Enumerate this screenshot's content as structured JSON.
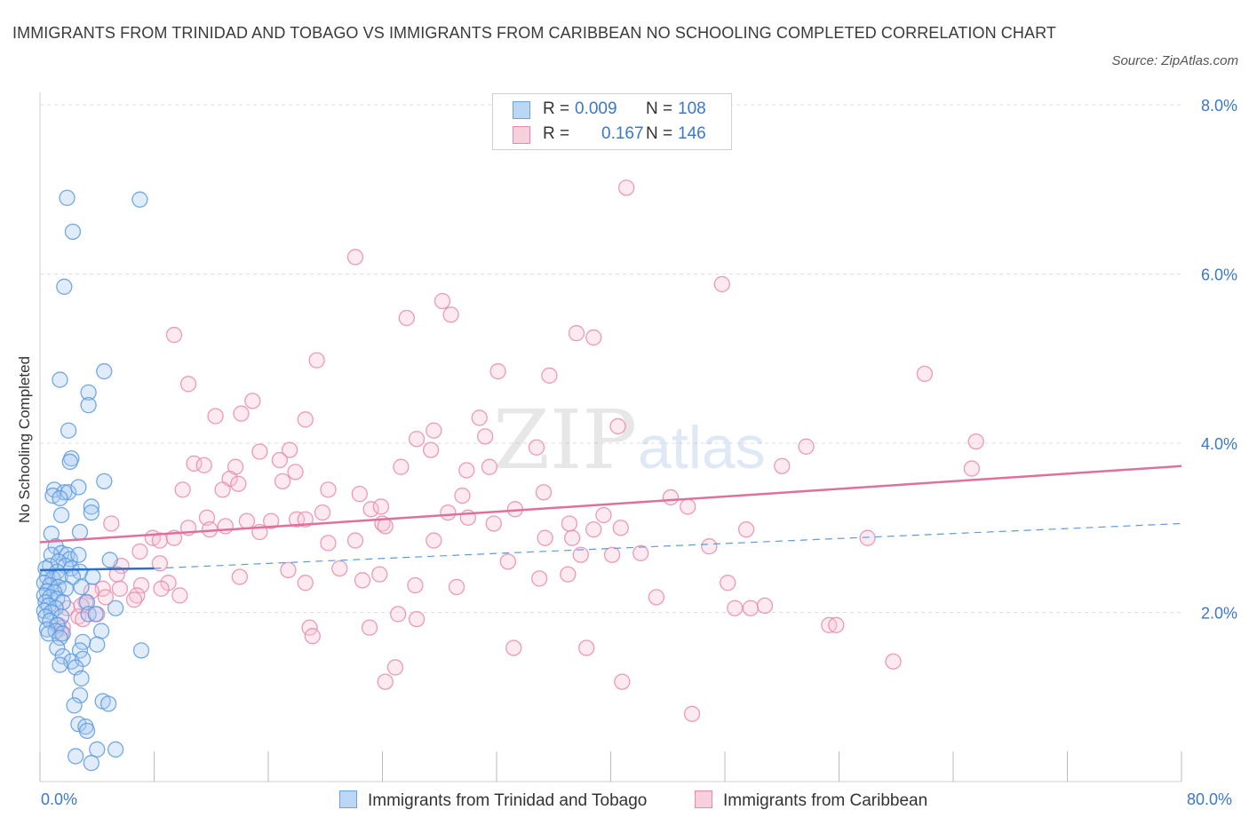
{
  "header": {
    "title": "IMMIGRANTS FROM TRINIDAD AND TOBAGO VS IMMIGRANTS FROM CARIBBEAN NO SCHOOLING COMPLETED CORRELATION CHART",
    "source": "Source: ZipAtlas.com"
  },
  "colors": {
    "blue": "#5b9be0",
    "blue_fill": "#a9c9f0",
    "blue_line": "#2a6fc9",
    "pink": "#e98aab",
    "pink_fill": "#f6c2d3",
    "pink_line": "#e0709a",
    "tick_text": "#3a78c9"
  },
  "legend": {
    "rows": [
      {
        "label": "R =",
        "r": "0.009",
        "n_label": "N =",
        "n": "108",
        "color": "blue"
      },
      {
        "label": "R =",
        "r": "0.167",
        "n_label": "N =",
        "n": "146",
        "color": "pink"
      }
    ]
  },
  "bottom_legend": {
    "series1": "Immigrants from Trinidad and Tobago",
    "series2": "Immigrants from Caribbean"
  },
  "watermark": {
    "zip": "ZIP",
    "atlas": "atlas"
  },
  "chart_data": {
    "type": "scatter",
    "title": "IMMIGRANTS FROM TRINIDAD AND TOBAGO VS IMMIGRANTS FROM CARIBBEAN NO SCHOOLING COMPLETED CORRELATION CHART",
    "xlabel": "",
    "ylabel": "No Schooling Completed",
    "xlim": [
      0,
      80
    ],
    "ylim": [
      0,
      8
    ],
    "x_tick_labels": [
      "0.0%",
      "80.0%"
    ],
    "y_ticks": [
      {
        "value": 2,
        "label": "2.0%"
      },
      {
        "value": 4,
        "label": "4.0%"
      },
      {
        "value": 6,
        "label": "6.0%"
      },
      {
        "value": 8,
        "label": "8.0%"
      }
    ],
    "grid": true,
    "legend_position": "top-center",
    "series": [
      {
        "name": "Immigrants from Trinidad and Tobago",
        "color": "blue",
        "r": 0.009,
        "n": 108,
        "trend_solid": [
          [
            0,
            2.5
          ],
          [
            8,
            2.52
          ]
        ],
        "trend_dashed": [
          [
            8,
            2.52
          ],
          [
            80,
            3.05
          ]
        ],
        "points": [
          [
            1.9,
            6.9
          ],
          [
            7.0,
            6.88
          ],
          [
            2.3,
            6.5
          ],
          [
            1.7,
            5.85
          ],
          [
            4.5,
            4.85
          ],
          [
            1.4,
            4.75
          ],
          [
            3.4,
            4.6
          ],
          [
            3.4,
            4.45
          ],
          [
            2.0,
            4.15
          ],
          [
            2.2,
            3.82
          ],
          [
            2.1,
            3.78
          ],
          [
            4.5,
            3.55
          ],
          [
            1.0,
            3.45
          ],
          [
            1.7,
            3.42
          ],
          [
            2.0,
            3.42
          ],
          [
            2.7,
            3.48
          ],
          [
            0.9,
            3.38
          ],
          [
            1.4,
            3.35
          ],
          [
            3.6,
            3.25
          ],
          [
            3.6,
            3.18
          ],
          [
            1.5,
            3.15
          ],
          [
            2.8,
            2.95
          ],
          [
            0.8,
            2.93
          ],
          [
            1.1,
            2.78
          ],
          [
            1.5,
            2.7
          ],
          [
            0.8,
            2.68
          ],
          [
            1.9,
            2.68
          ],
          [
            2.1,
            2.63
          ],
          [
            2.7,
            2.68
          ],
          [
            1.3,
            2.6
          ],
          [
            4.9,
            2.62
          ],
          [
            0.7,
            2.55
          ],
          [
            1.8,
            2.55
          ],
          [
            2.2,
            2.52
          ],
          [
            0.4,
            2.52
          ],
          [
            1.2,
            2.48
          ],
          [
            2.8,
            2.48
          ],
          [
            0.5,
            2.42
          ],
          [
            0.9,
            2.4
          ],
          [
            1.4,
            2.42
          ],
          [
            2.3,
            2.42
          ],
          [
            3.7,
            2.42
          ],
          [
            0.3,
            2.35
          ],
          [
            0.7,
            2.32
          ],
          [
            1.3,
            2.3
          ],
          [
            1.8,
            2.28
          ],
          [
            2.9,
            2.3
          ],
          [
            0.5,
            2.25
          ],
          [
            1.0,
            2.24
          ],
          [
            0.3,
            2.2
          ],
          [
            0.7,
            2.18
          ],
          [
            1.2,
            2.16
          ],
          [
            0.4,
            2.12
          ],
          [
            1.6,
            2.12
          ],
          [
            3.3,
            2.12
          ],
          [
            0.6,
            2.08
          ],
          [
            1.1,
            2.05
          ],
          [
            5.3,
            2.05
          ],
          [
            0.3,
            2.02
          ],
          [
            0.8,
            2.0
          ],
          [
            3.4,
            1.98
          ],
          [
            3.9,
            1.98
          ],
          [
            0.4,
            1.95
          ],
          [
            1.5,
            1.95
          ],
          [
            0.7,
            1.9
          ],
          [
            1.2,
            1.85
          ],
          [
            0.5,
            1.8
          ],
          [
            1.1,
            1.78
          ],
          [
            4.3,
            1.78
          ],
          [
            0.6,
            1.75
          ],
          [
            1.6,
            1.75
          ],
          [
            1.4,
            1.7
          ],
          [
            3.0,
            1.65
          ],
          [
            4.0,
            1.62
          ],
          [
            1.2,
            1.58
          ],
          [
            2.8,
            1.55
          ],
          [
            7.1,
            1.55
          ],
          [
            1.6,
            1.48
          ],
          [
            2.2,
            1.42
          ],
          [
            3.0,
            1.45
          ],
          [
            1.4,
            1.38
          ],
          [
            2.5,
            1.35
          ],
          [
            2.9,
            1.22
          ],
          [
            2.8,
            1.02
          ],
          [
            2.4,
            0.9
          ],
          [
            4.4,
            0.95
          ],
          [
            4.8,
            0.92
          ],
          [
            2.7,
            0.68
          ],
          [
            3.2,
            0.65
          ],
          [
            3.3,
            0.6
          ],
          [
            2.5,
            0.3
          ],
          [
            3.6,
            0.22
          ],
          [
            4.0,
            0.38
          ],
          [
            5.3,
            0.38
          ]
        ]
      },
      {
        "name": "Immigrants from Caribbean",
        "color": "pink",
        "r": 0.167,
        "n": 146,
        "trend": [
          [
            0,
            2.83
          ],
          [
            80,
            3.73
          ]
        ],
        "points": [
          [
            41.1,
            7.02
          ],
          [
            22.1,
            6.2
          ],
          [
            47.8,
            5.88
          ],
          [
            28.2,
            5.68
          ],
          [
            28.8,
            5.52
          ],
          [
            25.7,
            5.48
          ],
          [
            37.6,
            5.3
          ],
          [
            38.8,
            5.25
          ],
          [
            9.4,
            5.28
          ],
          [
            19.4,
            4.98
          ],
          [
            32.1,
            4.85
          ],
          [
            35.7,
            4.8
          ],
          [
            62.0,
            4.82
          ],
          [
            10.4,
            4.7
          ],
          [
            14.9,
            4.5
          ],
          [
            12.3,
            4.32
          ],
          [
            14.1,
            4.35
          ],
          [
            30.8,
            4.3
          ],
          [
            18.6,
            4.28
          ],
          [
            40.5,
            4.2
          ],
          [
            27.6,
            4.15
          ],
          [
            31.2,
            4.08
          ],
          [
            26.4,
            4.05
          ],
          [
            65.6,
            4.02
          ],
          [
            34.8,
            3.95
          ],
          [
            53.7,
            3.96
          ],
          [
            27.4,
            3.92
          ],
          [
            15.4,
            3.9
          ],
          [
            17.5,
            3.92
          ],
          [
            16.8,
            3.8
          ],
          [
            10.8,
            3.76
          ],
          [
            11.5,
            3.74
          ],
          [
            13.7,
            3.72
          ],
          [
            25.3,
            3.72
          ],
          [
            52.0,
            3.73
          ],
          [
            29.9,
            3.68
          ],
          [
            31.5,
            3.72
          ],
          [
            65.3,
            3.7
          ],
          [
            17.9,
            3.66
          ],
          [
            13.3,
            3.58
          ],
          [
            13.9,
            3.52
          ],
          [
            17.0,
            3.55
          ],
          [
            10.0,
            3.45
          ],
          [
            12.8,
            3.45
          ],
          [
            20.2,
            3.45
          ],
          [
            22.4,
            3.4
          ],
          [
            29.6,
            3.38
          ],
          [
            35.3,
            3.42
          ],
          [
            44.2,
            3.36
          ],
          [
            45.4,
            3.25
          ],
          [
            23.2,
            3.22
          ],
          [
            23.9,
            3.25
          ],
          [
            33.3,
            3.22
          ],
          [
            19.8,
            3.18
          ],
          [
            28.6,
            3.18
          ],
          [
            39.5,
            3.15
          ],
          [
            30.0,
            3.12
          ],
          [
            14.5,
            3.08
          ],
          [
            18.0,
            3.1
          ],
          [
            16.2,
            3.08
          ],
          [
            18.6,
            3.1
          ],
          [
            11.7,
            3.12
          ],
          [
            31.8,
            3.05
          ],
          [
            37.1,
            3.05
          ],
          [
            24.0,
            3.05
          ],
          [
            24.2,
            3.02
          ],
          [
            13.0,
            3.02
          ],
          [
            10.4,
            3.0
          ],
          [
            11.9,
            2.98
          ],
          [
            15.4,
            2.95
          ],
          [
            38.8,
            2.98
          ],
          [
            40.7,
            3.0
          ],
          [
            49.5,
            2.98
          ],
          [
            5.0,
            3.05
          ],
          [
            58.0,
            2.88
          ],
          [
            7.9,
            2.88
          ],
          [
            8.4,
            2.85
          ],
          [
            9.4,
            2.88
          ],
          [
            20.2,
            2.82
          ],
          [
            22.1,
            2.85
          ],
          [
            27.6,
            2.85
          ],
          [
            35.4,
            2.88
          ],
          [
            37.3,
            2.88
          ],
          [
            46.9,
            2.78
          ],
          [
            42.1,
            2.7
          ],
          [
            40.1,
            2.68
          ],
          [
            37.9,
            2.68
          ],
          [
            7.0,
            2.72
          ],
          [
            32.8,
            2.6
          ],
          [
            8.4,
            2.58
          ],
          [
            5.7,
            2.55
          ],
          [
            17.4,
            2.5
          ],
          [
            21.0,
            2.52
          ],
          [
            14.0,
            2.42
          ],
          [
            37.0,
            2.45
          ],
          [
            23.8,
            2.45
          ],
          [
            5.4,
            2.45
          ],
          [
            22.6,
            2.38
          ],
          [
            18.6,
            2.35
          ],
          [
            35.0,
            2.4
          ],
          [
            48.2,
            2.35
          ],
          [
            9.0,
            2.35
          ],
          [
            7.1,
            2.32
          ],
          [
            8.5,
            2.28
          ],
          [
            5.6,
            2.28
          ],
          [
            4.4,
            2.28
          ],
          [
            26.3,
            2.32
          ],
          [
            3.6,
            2.25
          ],
          [
            29.2,
            2.3
          ],
          [
            4.6,
            2.18
          ],
          [
            6.8,
            2.2
          ],
          [
            6.6,
            2.15
          ],
          [
            43.2,
            2.18
          ],
          [
            9.8,
            2.2
          ],
          [
            3.2,
            2.12
          ],
          [
            2.9,
            2.08
          ],
          [
            1.9,
            2.05
          ],
          [
            4.0,
            1.98
          ],
          [
            48.7,
            2.05
          ],
          [
            49.8,
            2.05
          ],
          [
            50.8,
            2.08
          ],
          [
            25.1,
            1.98
          ],
          [
            26.4,
            1.92
          ],
          [
            2.7,
            1.95
          ],
          [
            3.0,
            1.92
          ],
          [
            1.3,
            1.85
          ],
          [
            1.6,
            1.82
          ],
          [
            55.3,
            1.85
          ],
          [
            55.8,
            1.85
          ],
          [
            18.9,
            1.82
          ],
          [
            23.1,
            1.82
          ],
          [
            19.1,
            1.72
          ],
          [
            1.5,
            1.75
          ],
          [
            33.2,
            1.58
          ],
          [
            38.3,
            1.58
          ],
          [
            59.8,
            1.42
          ],
          [
            24.9,
            1.35
          ],
          [
            24.2,
            1.18
          ],
          [
            40.8,
            1.18
          ],
          [
            45.7,
            0.8
          ]
        ]
      }
    ]
  }
}
